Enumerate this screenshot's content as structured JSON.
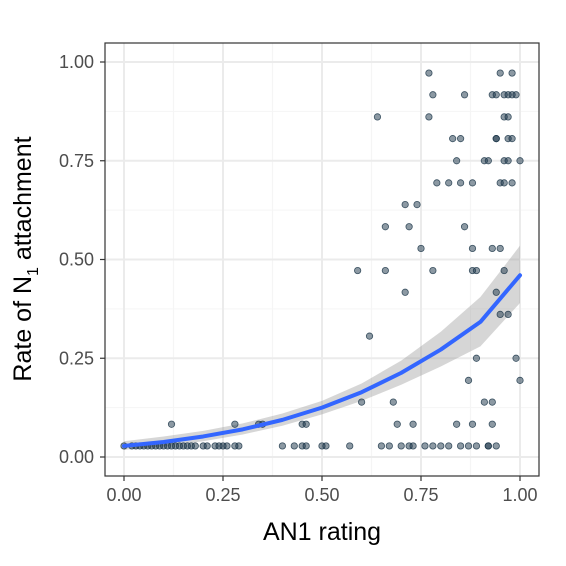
{
  "chart_data": {
    "type": "scatter",
    "title": "",
    "xlabel": "AN1 rating",
    "ylabel": "Rate of N1 attachment",
    "ylabel_parts": {
      "before": "Rate of N",
      "subscript": "1",
      "after": " attachment"
    },
    "xlim": [
      -0.05,
      1.05
    ],
    "ylim": [
      -0.05,
      1.05
    ],
    "x_ticks": [
      0,
      0.25,
      0.5,
      0.75,
      1
    ],
    "x_tick_labels": [
      "0.00",
      "0.25",
      "0.50",
      "0.75",
      "1.00"
    ],
    "y_ticks": [
      0,
      0.25,
      0.5,
      0.75,
      1
    ],
    "y_tick_labels": [
      "0.00",
      "0.25",
      "0.50",
      "0.75",
      "1.00"
    ],
    "grid": true,
    "legend": "none",
    "colors": {
      "points": "#1a3447",
      "fit_line": "#3366ff",
      "ribbon": "#999999",
      "panel_border": "#333333",
      "grid_major": "#ebebeb",
      "grid_minor": "#f5f5f5"
    },
    "points": [
      [
        0.0,
        0.028
      ],
      [
        0.02,
        0.028
      ],
      [
        0.03,
        0.028
      ],
      [
        0.04,
        0.028
      ],
      [
        0.05,
        0.028
      ],
      [
        0.06,
        0.028
      ],
      [
        0.07,
        0.028
      ],
      [
        0.08,
        0.028
      ],
      [
        0.09,
        0.028
      ],
      [
        0.1,
        0.028
      ],
      [
        0.11,
        0.028
      ],
      [
        0.12,
        0.028
      ],
      [
        0.13,
        0.028
      ],
      [
        0.14,
        0.028
      ],
      [
        0.15,
        0.028
      ],
      [
        0.16,
        0.028
      ],
      [
        0.17,
        0.028
      ],
      [
        0.18,
        0.028
      ],
      [
        0.2,
        0.028
      ],
      [
        0.21,
        0.028
      ],
      [
        0.23,
        0.028
      ],
      [
        0.24,
        0.028
      ],
      [
        0.25,
        0.028
      ],
      [
        0.26,
        0.028
      ],
      [
        0.28,
        0.028
      ],
      [
        0.29,
        0.028
      ],
      [
        0.12,
        0.083
      ],
      [
        0.28,
        0.083
      ],
      [
        0.34,
        0.083
      ],
      [
        0.4,
        0.028
      ],
      [
        0.43,
        0.028
      ],
      [
        0.45,
        0.028
      ],
      [
        0.46,
        0.028
      ],
      [
        0.5,
        0.028
      ],
      [
        0.51,
        0.028
      ],
      [
        0.57,
        0.028
      ],
      [
        0.45,
        0.083
      ],
      [
        0.46,
        0.083
      ],
      [
        0.59,
        0.472
      ],
      [
        0.6,
        0.139
      ],
      [
        0.62,
        0.306
      ],
      [
        0.64,
        0.861
      ],
      [
        0.65,
        0.028
      ],
      [
        0.66,
        0.583
      ],
      [
        0.66,
        0.472
      ],
      [
        0.67,
        0.028
      ],
      [
        0.68,
        0.139
      ],
      [
        0.69,
        0.083
      ],
      [
        0.7,
        0.028
      ],
      [
        0.71,
        0.417
      ],
      [
        0.71,
        0.639
      ],
      [
        0.72,
        0.583
      ],
      [
        0.72,
        0.028
      ],
      [
        0.73,
        0.028
      ],
      [
        0.73,
        0.083
      ],
      [
        0.74,
        0.639
      ],
      [
        0.75,
        0.528
      ],
      [
        0.76,
        0.028
      ],
      [
        0.77,
        0.972
      ],
      [
        0.77,
        0.861
      ],
      [
        0.78,
        0.917
      ],
      [
        0.78,
        0.472
      ],
      [
        0.78,
        0.028
      ],
      [
        0.79,
        0.694
      ],
      [
        0.8,
        0.028
      ],
      [
        0.82,
        0.694
      ],
      [
        0.82,
        0.028
      ],
      [
        0.83,
        0.806
      ],
      [
        0.84,
        0.083
      ],
      [
        0.85,
        0.806
      ],
      [
        0.85,
        0.694
      ],
      [
        0.85,
        0.028
      ],
      [
        0.84,
        0.75
      ],
      [
        0.86,
        0.917
      ],
      [
        0.86,
        0.583
      ],
      [
        0.87,
        0.194
      ],
      [
        0.87,
        0.028
      ],
      [
        0.88,
        0.528
      ],
      [
        0.88,
        0.472
      ],
      [
        0.89,
        0.472
      ],
      [
        0.89,
        0.25
      ],
      [
        0.88,
        0.083
      ],
      [
        0.89,
        0.028
      ],
      [
        0.88,
        0.694
      ],
      [
        0.92,
        0.75
      ],
      [
        0.91,
        0.75
      ],
      [
        0.91,
        0.139
      ],
      [
        0.92,
        0.028
      ],
      [
        0.93,
        0.528
      ],
      [
        0.93,
        0.139
      ],
      [
        0.93,
        0.083
      ],
      [
        0.94,
        0.806
      ],
      [
        0.94,
        0.917
      ],
      [
        0.94,
        0.417
      ],
      [
        0.94,
        0.028
      ],
      [
        0.95,
        0.972
      ],
      [
        0.95,
        0.694
      ],
      [
        0.95,
        0.528
      ],
      [
        0.95,
        0.361
      ],
      [
        0.96,
        0.861
      ],
      [
        0.96,
        0.75
      ],
      [
        0.96,
        0.694
      ],
      [
        0.96,
        0.472
      ],
      [
        0.97,
        0.917
      ],
      [
        0.97,
        0.861
      ],
      [
        0.97,
        0.361
      ],
      [
        0.97,
        0.806
      ],
      [
        0.98,
        0.972
      ],
      [
        0.98,
        0.917
      ],
      [
        0.98,
        0.806
      ],
      [
        0.98,
        0.694
      ],
      [
        0.99,
        0.917
      ],
      [
        1.0,
        0.75
      ],
      [
        1.0,
        0.194
      ],
      [
        0.93,
        0.917
      ],
      [
        0.96,
        0.917
      ],
      [
        0.97,
        0.75
      ],
      [
        0.99,
        0.25
      ],
      [
        0.35,
        0.083
      ],
      [
        0.92,
        0.028
      ],
      [
        0.94,
        0.806
      ]
    ],
    "fit_line": {
      "x": [
        0,
        0.1,
        0.2,
        0.3,
        0.4,
        0.5,
        0.6,
        0.7,
        0.8,
        0.9,
        1.0
      ],
      "y": [
        0.028,
        0.038,
        0.052,
        0.07,
        0.094,
        0.125,
        0.164,
        0.213,
        0.272,
        0.342,
        0.46
      ],
      "lower": [
        0.018,
        0.027,
        0.04,
        0.057,
        0.079,
        0.108,
        0.142,
        0.183,
        0.229,
        0.28,
        0.39
      ],
      "upper": [
        0.04,
        0.052,
        0.066,
        0.085,
        0.11,
        0.142,
        0.186,
        0.244,
        0.317,
        0.405,
        0.535
      ]
    }
  }
}
